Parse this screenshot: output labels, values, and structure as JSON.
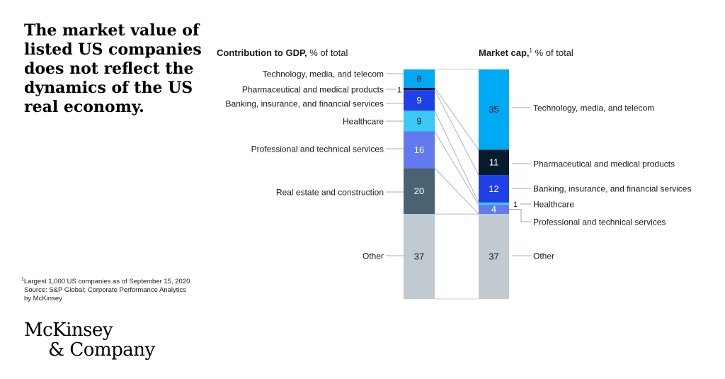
{
  "headline": "The market value of listed US companies does not reflect the dynamics of the US real economy.",
  "footnote": {
    "marker": "1",
    "line1": "Largest 1,000 US companies as of September 15, 2020.",
    "line2": "Source: S&P Global; Corporate Performance Analytics",
    "line3": "by McKinsey"
  },
  "logo": {
    "line1": "McKinsey",
    "line2": "& Company"
  },
  "chart_data": {
    "type": "bar",
    "stacked": true,
    "categories": [
      "Contribution to GDP",
      "Market cap"
    ],
    "columns": [
      {
        "title_bold": "Contribution to GDP,",
        "title_sup": "",
        "title_rest": " % of total"
      },
      {
        "title_bold": "Market cap,",
        "title_sup": "1",
        "title_rest": " % of total"
      }
    ],
    "ylim": [
      0,
      100
    ],
    "series": [
      {
        "name": "Technology, media, and telecom",
        "values": [
          8,
          35
        ],
        "color": "#00a9f4",
        "text_color": "#0b1d2e"
      },
      {
        "name": "Pharmaceutical and medical products",
        "values": [
          1,
          11
        ],
        "color": "#051c2c",
        "text_color": "#ffffff"
      },
      {
        "name": "Banking, insurance, and financial services",
        "values": [
          9,
          12
        ],
        "color": "#1f40e6",
        "text_color": "#ffffff"
      },
      {
        "name": "Healthcare",
        "values": [
          9,
          1
        ],
        "color": "#3bc9f5",
        "text_color": "#0b1d2e"
      },
      {
        "name": "Professional and technical services",
        "values": [
          16,
          4
        ],
        "color": "#6279ef",
        "text_color": "#ffffff"
      },
      {
        "name": "Real estate and construction",
        "values": [
          20,
          0
        ],
        "color": "#4b6273",
        "text_color": "#ffffff"
      },
      {
        "name": "Other",
        "values": [
          37,
          37
        ],
        "color": "#c1c9d1",
        "text_color": "#0b1d2e"
      }
    ]
  }
}
